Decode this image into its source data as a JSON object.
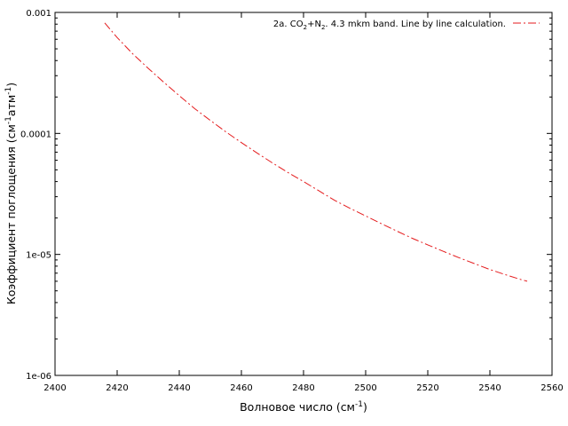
{
  "chart_data": {
    "type": "line",
    "xlabel": "Волновое число (см",
    "xlabel_sup": "-1",
    "xlabel_end": ")",
    "ylabel": "Коэффициент поглощения (см",
    "ylabel_sup1": "-1",
    "ylabel_mid": "атм",
    "ylabel_sup2": "-1",
    "ylabel_end": ")",
    "xlim": [
      2400,
      2560
    ],
    "ylim": [
      1e-06,
      0.001
    ],
    "yscale": "log",
    "grid": false,
    "legend_position": "top-right",
    "xticks": [
      2400,
      2420,
      2440,
      2460,
      2480,
      2500,
      2520,
      2540,
      2560
    ],
    "yticks": [
      {
        "value": 0.001,
        "label": "0.001"
      },
      {
        "value": 0.0001,
        "label": "0.0001"
      },
      {
        "value": 1e-05,
        "label": "1e-05"
      },
      {
        "value": 1e-06,
        "label": "1e-06"
      }
    ],
    "series": [
      {
        "name_parts": [
          "2a. CO",
          "2",
          "+N",
          "2",
          ". 4.3 mkm band. Line by line calculation."
        ],
        "color": "#e41a1c",
        "dash": "dash-dot",
        "x": [
          2416,
          2420,
          2425,
          2430,
          2435,
          2440,
          2445,
          2450,
          2455,
          2460,
          2465,
          2470,
          2475,
          2480,
          2485,
          2490,
          2495,
          2500,
          2505,
          2510,
          2515,
          2520,
          2525,
          2530,
          2535,
          2540,
          2545,
          2550,
          2552
        ],
        "y": [
          0.00082,
          0.00062,
          0.000455,
          0.000345,
          0.000265,
          0.000205,
          0.00016,
          0.000128,
          0.000103,
          8.4e-05,
          6.9e-05,
          5.7e-05,
          4.75e-05,
          4e-05,
          3.35e-05,
          2.8e-05,
          2.4e-05,
          2.08e-05,
          1.8e-05,
          1.56e-05,
          1.36e-05,
          1.2e-05,
          1.06e-05,
          9.4e-06,
          8.4e-06,
          7.5e-06,
          6.8e-06,
          6.2e-06,
          6e-06
        ]
      }
    ]
  }
}
